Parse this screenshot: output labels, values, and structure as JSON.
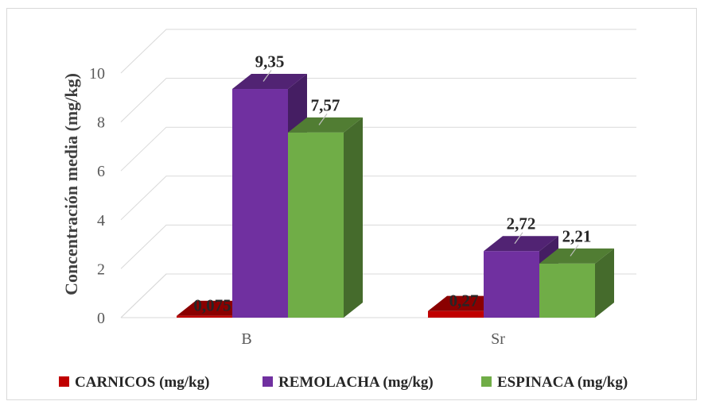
{
  "chart_data": {
    "type": "bar",
    "title": "",
    "xlabel": "",
    "ylabel": "Concentración media (mg/kg)",
    "ylim": [
      0,
      10
    ],
    "yticks": [
      "0",
      "2",
      "4",
      "6",
      "8",
      "10"
    ],
    "grid": true,
    "legend_position": "bottom",
    "categories": [
      "B",
      "Sr"
    ],
    "series": [
      {
        "name": "CARNICOS (mg/kg)",
        "color": "#c00000",
        "values": [
          0.075,
          0.27
        ],
        "labels": [
          "0,075",
          "0,27"
        ]
      },
      {
        "name": "REMOLACHA (mg/kg)",
        "color": "#7030a0",
        "values": [
          9.35,
          2.72
        ],
        "labels": [
          "9,35",
          "2,72"
        ]
      },
      {
        "name": "ESPINACA (mg/kg)",
        "color": "#70ad47",
        "values": [
          7.57,
          2.21
        ],
        "labels": [
          "7,57",
          "2,21"
        ]
      }
    ]
  }
}
